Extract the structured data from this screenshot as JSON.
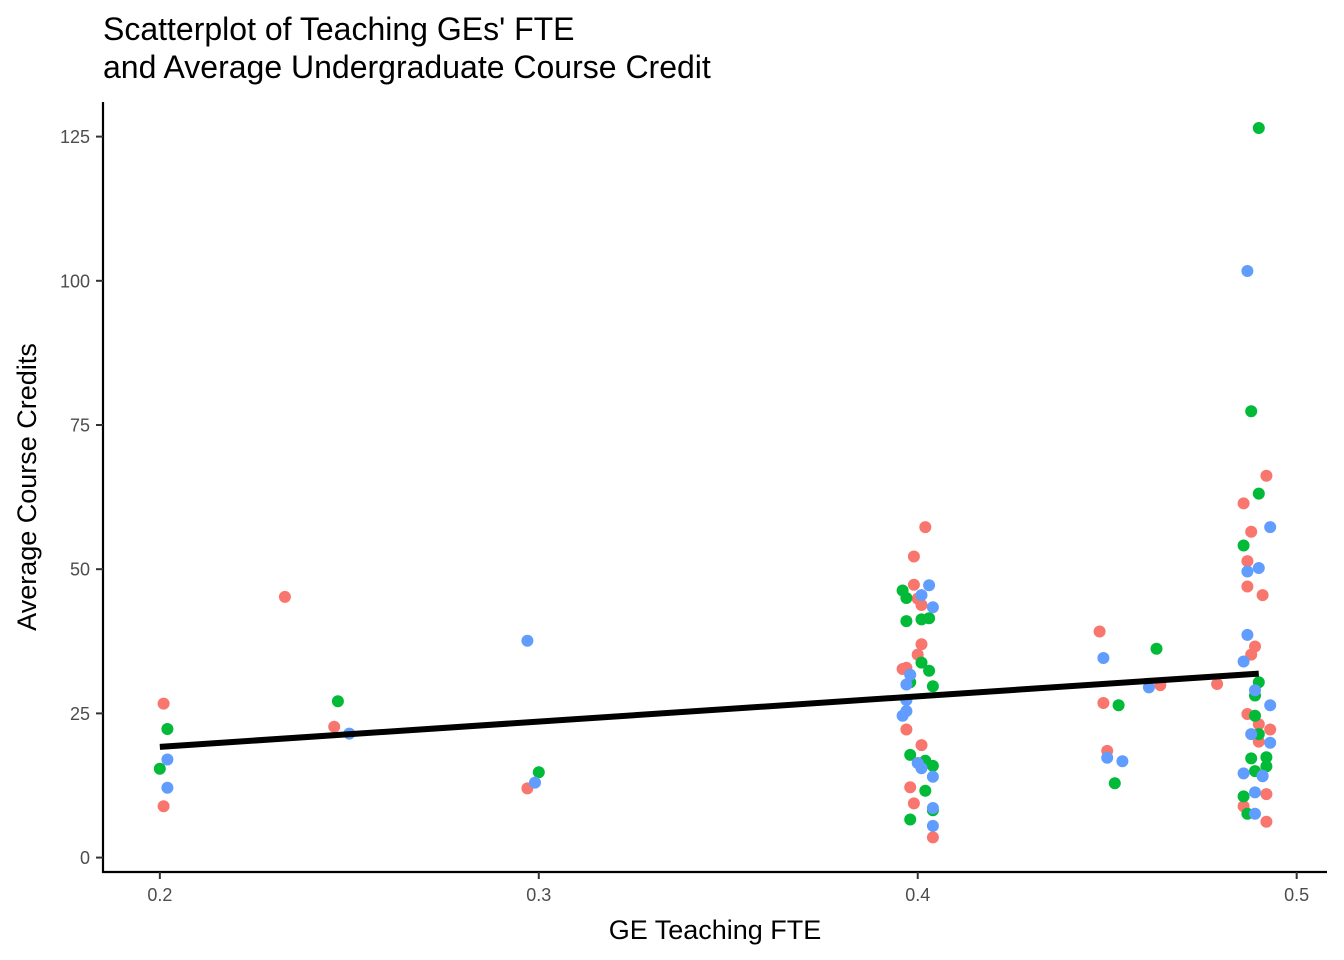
{
  "chart_data": {
    "type": "scatter",
    "title_lines": [
      "Scatterplot of Teaching GEs' FTE",
      "and Average Undergraduate Course Credit"
    ],
    "xlabel": "GE Teaching FTE",
    "ylabel": "Average Course Credits",
    "xlim": [
      0.185,
      0.508
    ],
    "ylim": [
      -2.5,
      131
    ],
    "x_ticks": [
      0.2,
      0.3,
      0.4,
      0.5
    ],
    "x_tick_labels": [
      "0.2",
      "0.3",
      "0.4",
      "0.5"
    ],
    "y_ticks": [
      0,
      25,
      50,
      75,
      100,
      125
    ],
    "y_tick_labels": [
      "0",
      "25",
      "50",
      "75",
      "100",
      "125"
    ],
    "grid": false,
    "legend": "none",
    "colors": {
      "red": "#f8766d",
      "green": "#00ba38",
      "blue": "#619cff",
      "trend": "#000000"
    },
    "trend_line": {
      "x": [
        0.2,
        0.49
      ],
      "y": [
        19.2,
        31.9
      ]
    },
    "groups": [
      {
        "color": "red",
        "points": [
          [
            0.201,
            26.7
          ],
          [
            0.201,
            8.9
          ],
          [
            0.233,
            45.2
          ],
          [
            0.246,
            22.7
          ],
          [
            0.297,
            12.0
          ],
          [
            0.396,
            32.7
          ],
          [
            0.397,
            32.9
          ],
          [
            0.397,
            22.2
          ],
          [
            0.398,
            12.2
          ],
          [
            0.399,
            9.4
          ],
          [
            0.399,
            52.2
          ],
          [
            0.399,
            47.3
          ],
          [
            0.4,
            44.9
          ],
          [
            0.4,
            35.2
          ],
          [
            0.401,
            43.8
          ],
          [
            0.401,
            19.5
          ],
          [
            0.401,
            37.0
          ],
          [
            0.402,
            57.3
          ],
          [
            0.404,
            3.5
          ],
          [
            0.448,
            39.2
          ],
          [
            0.449,
            26.8
          ],
          [
            0.45,
            18.5
          ],
          [
            0.464,
            29.9
          ],
          [
            0.479,
            30.1
          ],
          [
            0.486,
            61.4
          ],
          [
            0.486,
            8.9
          ],
          [
            0.487,
            47.0
          ],
          [
            0.487,
            24.9
          ],
          [
            0.487,
            51.4
          ],
          [
            0.488,
            56.5
          ],
          [
            0.488,
            35.2
          ],
          [
            0.489,
            36.6
          ],
          [
            0.49,
            20.1
          ],
          [
            0.49,
            23.1
          ],
          [
            0.491,
            45.5
          ],
          [
            0.492,
            11.0
          ],
          [
            0.492,
            66.2
          ],
          [
            0.492,
            6.2
          ],
          [
            0.493,
            22.2
          ]
        ]
      },
      {
        "color": "green",
        "points": [
          [
            0.2,
            15.4
          ],
          [
            0.202,
            22.3
          ],
          [
            0.247,
            27.1
          ],
          [
            0.3,
            14.8
          ],
          [
            0.396,
            46.3
          ],
          [
            0.397,
            45.0
          ],
          [
            0.397,
            41.0
          ],
          [
            0.398,
            17.8
          ],
          [
            0.398,
            6.6
          ],
          [
            0.398,
            30.4
          ],
          [
            0.401,
            41.3
          ],
          [
            0.401,
            33.8
          ],
          [
            0.402,
            11.6
          ],
          [
            0.402,
            16.8
          ],
          [
            0.403,
            41.5
          ],
          [
            0.403,
            32.4
          ],
          [
            0.404,
            29.7
          ],
          [
            0.404,
            15.9
          ],
          [
            0.404,
            8.2
          ],
          [
            0.452,
            12.9
          ],
          [
            0.453,
            26.4
          ],
          [
            0.463,
            36.2
          ],
          [
            0.486,
            54.1
          ],
          [
            0.486,
            10.6
          ],
          [
            0.487,
            7.6
          ],
          [
            0.488,
            17.2
          ],
          [
            0.488,
            77.4
          ],
          [
            0.489,
            24.6
          ],
          [
            0.489,
            15.0
          ],
          [
            0.489,
            28.1
          ],
          [
            0.49,
            63.1
          ],
          [
            0.49,
            21.4
          ],
          [
            0.49,
            126.5
          ],
          [
            0.49,
            30.4
          ],
          [
            0.492,
            17.4
          ],
          [
            0.492,
            15.8
          ]
        ]
      },
      {
        "color": "blue",
        "points": [
          [
            0.202,
            17.0
          ],
          [
            0.202,
            12.1
          ],
          [
            0.25,
            21.5
          ],
          [
            0.297,
            37.6
          ],
          [
            0.299,
            13.0
          ],
          [
            0.396,
            24.6
          ],
          [
            0.397,
            30.0
          ],
          [
            0.397,
            25.4
          ],
          [
            0.397,
            27.3
          ],
          [
            0.398,
            31.7
          ],
          [
            0.4,
            16.4
          ],
          [
            0.401,
            15.5
          ],
          [
            0.401,
            45.5
          ],
          [
            0.403,
            47.2
          ],
          [
            0.404,
            43.4
          ],
          [
            0.404,
            14.0
          ],
          [
            0.404,
            8.6
          ],
          [
            0.404,
            5.5
          ],
          [
            0.449,
            34.6
          ],
          [
            0.45,
            17.3
          ],
          [
            0.454,
            16.7
          ],
          [
            0.461,
            29.5
          ],
          [
            0.486,
            34.0
          ],
          [
            0.486,
            14.6
          ],
          [
            0.487,
            38.6
          ],
          [
            0.487,
            49.6
          ],
          [
            0.487,
            101.7
          ],
          [
            0.488,
            21.4
          ],
          [
            0.489,
            29.0
          ],
          [
            0.489,
            11.3
          ],
          [
            0.489,
            7.6
          ],
          [
            0.49,
            50.2
          ],
          [
            0.491,
            14.2
          ],
          [
            0.491,
            14.1
          ],
          [
            0.493,
            57.3
          ],
          [
            0.493,
            26.4
          ],
          [
            0.493,
            19.9
          ]
        ]
      }
    ]
  }
}
